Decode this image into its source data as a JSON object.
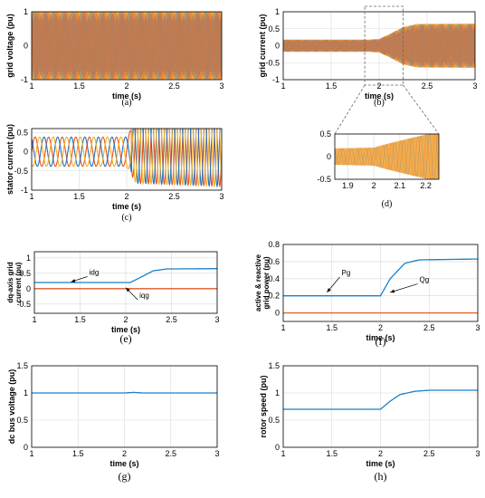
{
  "chart_data": [
    {
      "id": "a",
      "type": "line",
      "caption": "(a)",
      "xlabel": "time (s)",
      "ylabel": "grid voltage (pu)",
      "xlim": [
        1,
        3
      ],
      "ylim": [
        -1,
        1
      ],
      "xticks": [
        "1",
        "1.5",
        "2",
        "2.5",
        "3"
      ],
      "yticks": [
        "1",
        "0",
        "-1"
      ],
      "grid": true,
      "series": [
        {
          "color": "#f0a030",
          "x": [
            1,
            3
          ],
          "y": [
            1,
            1
          ],
          "style": "three-phase sinusoid envelope, amplitude 1 pu"
        }
      ]
    },
    {
      "id": "b",
      "type": "line",
      "caption": "(b)",
      "xlabel": "time (s)",
      "ylabel": "grid current (pu)",
      "xlim": [
        1,
        3
      ],
      "ylim": [
        -1,
        1
      ],
      "xticks": [
        "1",
        "1.5",
        "2",
        "2.5",
        "3"
      ],
      "yticks": [
        "1",
        "0.5",
        "0",
        "-0.5",
        "-1"
      ],
      "grid": true,
      "series": [
        {
          "color": "#f0a030",
          "x": [
            1,
            1.9,
            2,
            2.1,
            2.25,
            2.4,
            3
          ],
          "y": [
            0.18,
            0.18,
            0.2,
            0.33,
            0.55,
            0.64,
            0.65
          ],
          "style": "three-phase sinusoid envelope"
        }
      ]
    },
    {
      "id": "c",
      "type": "line",
      "caption": "(c)",
      "xlabel": "time (s)",
      "ylabel": "stator current (pu)",
      "xlim": [
        1,
        3
      ],
      "ylim": [
        -1,
        0.6
      ],
      "xticks": [
        "1",
        "1.5",
        "2",
        "2.5",
        "3"
      ],
      "yticks": [
        "0.5",
        "0",
        "-0.5",
        "-1"
      ],
      "grid": true,
      "series": [
        {
          "color": "#e8501c",
          "x": [
            1,
            2,
            2.1,
            3
          ],
          "y": [
            0.38,
            0.38,
            0.82,
            0.9
          ],
          "style": "phase a sinusoid amplitude"
        },
        {
          "color": "#2070c0",
          "x": [
            1,
            2,
            2.1,
            3
          ],
          "y": [
            0.38,
            0.38,
            0.82,
            0.9
          ],
          "style": "phase b sinusoid amplitude"
        },
        {
          "color": "#f0b020",
          "x": [
            1,
            2,
            2.1,
            3
          ],
          "y": [
            0.38,
            0.38,
            0.82,
            0.9
          ],
          "style": "phase c sinusoid amplitude"
        }
      ]
    },
    {
      "id": "d",
      "type": "line",
      "caption": "(d)",
      "xlabel": "",
      "ylabel": "",
      "xlim": [
        1.85,
        2.25
      ],
      "ylim": [
        -0.5,
        0.5
      ],
      "xticks": [
        "1.9",
        "2",
        "2.1",
        "2.2"
      ],
      "yticks": [
        "0.5",
        "0",
        "-0.5"
      ],
      "grid": true,
      "series": [
        {
          "color": "#f0a030",
          "x": [
            1.85,
            2,
            2.05,
            2.15,
            2.25
          ],
          "y": [
            0.18,
            0.2,
            0.28,
            0.42,
            0.55
          ],
          "style": "three-phase sinusoid envelope (zoom)"
        }
      ]
    },
    {
      "id": "e",
      "type": "line",
      "caption": "(e)",
      "xlabel": "time (s)",
      "ylabel": "dq-axis grid current (pu)",
      "ylabel_lines": [
        "dq-axis grid",
        "current (pu)"
      ],
      "xlim": [
        1,
        3
      ],
      "ylim": [
        -0.8,
        1.2
      ],
      "xticks": [
        "1",
        "1.5",
        "2",
        "2.5",
        "3"
      ],
      "yticks": [
        "1",
        "0.5",
        "0",
        "-0.5"
      ],
      "grid": true,
      "series": [
        {
          "name": "idg",
          "color": "#1a80c8",
          "x": [
            1,
            2.05,
            2.15,
            2.3,
            2.45,
            3
          ],
          "y": [
            0.2,
            0.2,
            0.35,
            0.58,
            0.64,
            0.65
          ]
        },
        {
          "name": "iqg",
          "color": "#e05a28",
          "x": [
            1,
            3
          ],
          "y": [
            0,
            0
          ]
        }
      ]
    },
    {
      "id": "f",
      "type": "line",
      "caption": "(f)",
      "xlabel": "time (s)",
      "ylabel": "active & reactive grid power (pu)",
      "ylabel_lines": [
        "active & reactive",
        "grid power (pu)"
      ],
      "xlim": [
        1,
        3
      ],
      "ylim": [
        -0.1,
        0.8
      ],
      "xticks": [
        "1",
        "1.5",
        "2",
        "2.5",
        "3"
      ],
      "yticks": [
        "0.8",
        "0.6",
        "0.4",
        "0.2",
        "0"
      ],
      "grid": true,
      "series": [
        {
          "name": "Pg",
          "color": "#1a80c8",
          "x": [
            1,
            2,
            2.1,
            2.25,
            2.4,
            3
          ],
          "y": [
            0.2,
            0.2,
            0.4,
            0.58,
            0.62,
            0.63
          ]
        },
        {
          "name": "Qg",
          "color": "#e05a28",
          "x": [
            1,
            3
          ],
          "y": [
            0,
            0
          ]
        }
      ]
    },
    {
      "id": "g",
      "type": "line",
      "caption": "(g)",
      "xlabel": "time (s)",
      "ylabel": "dc bus voltage (pu)",
      "xlim": [
        1,
        3
      ],
      "ylim": [
        0,
        1.5
      ],
      "xticks": [
        "1",
        "1.5",
        "2",
        "2.5",
        "3"
      ],
      "yticks": [
        "1.5",
        "1",
        "0.5",
        "0"
      ],
      "grid": true,
      "series": [
        {
          "color": "#1a80c8",
          "x": [
            1,
            2,
            2.1,
            2.2,
            3
          ],
          "y": [
            1,
            1,
            1.01,
            1,
            1
          ]
        }
      ]
    },
    {
      "id": "h",
      "type": "line",
      "caption": "(h)",
      "xlabel": "time (s)",
      "ylabel": "rotor speed (pu)",
      "xlim": [
        1,
        3
      ],
      "ylim": [
        0,
        1.5
      ],
      "xticks": [
        "1",
        "1.5",
        "2",
        "2.5",
        "3"
      ],
      "yticks": [
        "1.5",
        "1",
        "0.5",
        "0"
      ],
      "grid": true,
      "series": [
        {
          "color": "#1a80c8",
          "x": [
            1,
            2,
            2.1,
            2.2,
            2.35,
            2.5,
            3
          ],
          "y": [
            0.7,
            0.7,
            0.85,
            0.97,
            1.03,
            1.05,
            1.05
          ]
        }
      ]
    }
  ],
  "annotations": {
    "e": [
      {
        "text": "idg",
        "tx": 1.6,
        "ty": 0.45,
        "ax": 1.4,
        "ay": 0.22
      },
      {
        "text": "iqg",
        "tx": 2.15,
        "ty": -0.3,
        "ax": 2.0,
        "ay": 0.03
      }
    ],
    "f": [
      {
        "text": "Pg",
        "tx": 1.6,
        "ty": 0.44,
        "ax": 1.45,
        "ay": 0.24
      },
      {
        "text": "Qg",
        "tx": 2.4,
        "ty": 0.36,
        "ax": 2.1,
        "ay": 0.24
      }
    ]
  }
}
